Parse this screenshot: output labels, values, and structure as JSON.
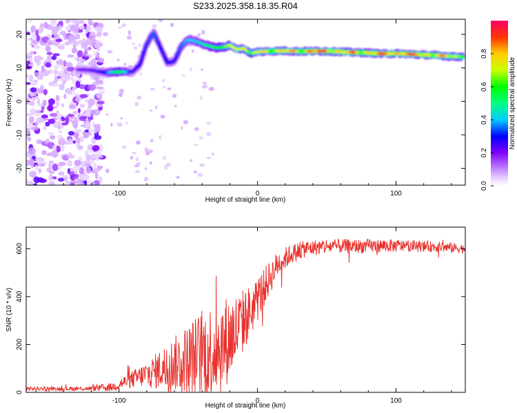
{
  "title": "S233.2025.358.18.35.R04",
  "chart_data": [
    {
      "type": "heatmap",
      "name": "spectrogram",
      "xlabel": "Height of straight line (km)",
      "ylabel": "Frequency (Hz)",
      "xlim": [
        -167,
        150
      ],
      "ylim": [
        -25,
        24.5
      ],
      "xticks": [
        -100,
        0,
        100
      ],
      "yticks": [
        -20,
        -10,
        0,
        10,
        20
      ],
      "ridge": {
        "x": [
          -130,
          -120,
          -110,
          -100,
          -90,
          -85,
          -80,
          -75,
          -70,
          -65,
          -60,
          -55,
          -50,
          -45,
          -40,
          -35,
          -30,
          -25,
          -20,
          -15,
          -10,
          -5,
          0,
          10,
          20,
          30,
          40,
          50,
          60,
          70,
          80,
          90,
          100,
          110,
          120,
          130,
          140,
          148
        ],
        "freq": [
          9.5,
          9.3,
          8.6,
          8.8,
          8.8,
          11,
          17,
          20.5,
          16,
          11.5,
          12,
          16.5,
          18.5,
          18,
          17.2,
          16.5,
          16,
          16.2,
          16.8,
          15.5,
          15.8,
          14.3,
          14.8,
          15,
          15.1,
          14.9,
          15,
          15,
          14.8,
          14.6,
          14.5,
          14.2,
          14.3,
          14.1,
          13.9,
          13.7,
          13.4,
          13.3
        ],
        "amp": [
          0.2,
          0.22,
          0.3,
          0.6,
          0.25,
          0.3,
          0.32,
          0.35,
          0.3,
          0.3,
          0.3,
          0.35,
          0.4,
          0.4,
          0.45,
          0.5,
          0.55,
          0.6,
          0.7,
          0.7,
          0.75,
          0.6,
          0.75,
          0.8,
          0.82,
          0.82,
          0.9,
          0.9,
          0.85,
          0.85,
          0.85,
          0.9,
          0.92,
          0.92,
          0.85,
          0.8,
          0.8,
          0.75
        ]
      },
      "colorbar": {
        "label": "Normalized spectral amplitude",
        "ticks": [
          "0.0",
          "0.2",
          "0.4",
          "0.6",
          "0.8"
        ],
        "range": [
          0,
          1
        ]
      }
    },
    {
      "type": "line",
      "name": "snr",
      "xlabel": "Height of straight line (km)",
      "ylabel": "SNR (10 * v/v)",
      "xlim": [
        -167,
        150
      ],
      "ylim": [
        0,
        690
      ],
      "xticks": [
        -100,
        0,
        100
      ],
      "yticks": [
        0,
        200,
        400,
        600
      ],
      "color": "#e8332e",
      "envelope": {
        "x": [
          -167,
          -140,
          -120,
          -105,
          -95,
          -85,
          -75,
          -65,
          -55,
          -45,
          -35,
          -25,
          -15,
          -5,
          5,
          15,
          25,
          35,
          50,
          70,
          90,
          110,
          130,
          150
        ],
        "base": [
          15,
          15,
          16,
          22,
          45,
          65,
          85,
          110,
          130,
          150,
          170,
          200,
          260,
          340,
          440,
          540,
          580,
          600,
          610,
          610,
          612,
          612,
          608,
          600
        ],
        "noise": [
          8,
          8,
          10,
          18,
          30,
          45,
          70,
          100,
          130,
          170,
          200,
          200,
          160,
          110,
          80,
          55,
          40,
          35,
          32,
          30,
          28,
          25,
          22,
          20
        ]
      }
    }
  ]
}
